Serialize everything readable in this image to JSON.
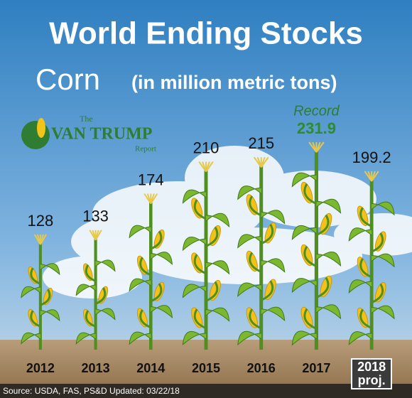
{
  "chart_data": {
    "type": "bar",
    "title": "World Ending Stocks",
    "subtitle": "Corn",
    "unit": "(in million metric tons)",
    "annotation": "Record",
    "logo": {
      "top": "The",
      "name": "VAN TRUMP",
      "bottom": "Report"
    },
    "categories": [
      "2012",
      "2013",
      "2014",
      "2015",
      "2016",
      "2017",
      "2018 proj."
    ],
    "values": [
      128,
      133,
      174,
      210,
      215,
      231.9,
      199.2
    ],
    "color": "#7cb82f",
    "source": "Source: USDA, FAS, PS&D Updated: 03/22/18"
  }
}
